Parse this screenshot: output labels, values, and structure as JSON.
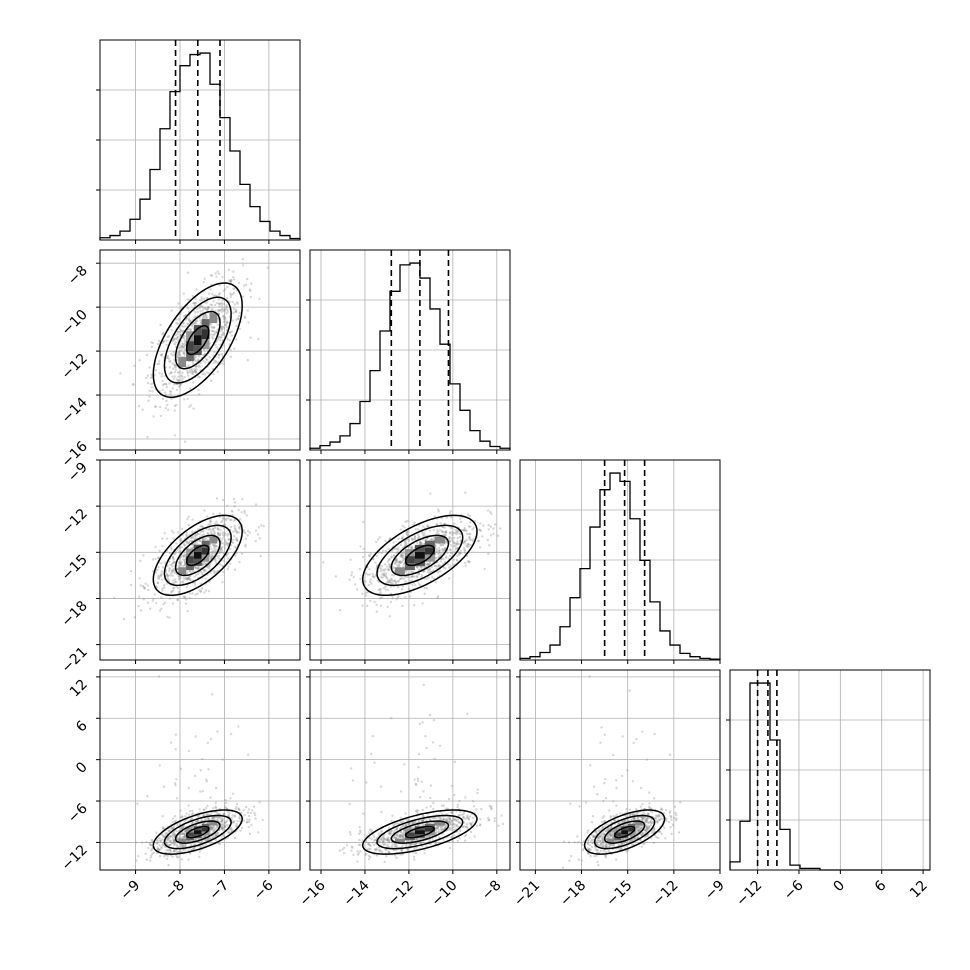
{
  "chart_data": {
    "type": "corner",
    "parameters": [
      {
        "id": "p0",
        "mean": -7.6,
        "sigma": 0.5,
        "range": [
          -9.8,
          -5.3
        ],
        "ticks": [
          -9,
          -8,
          -7,
          -6
        ],
        "quantiles": [
          -8.1,
          -7.6,
          -7.1
        ]
      },
      {
        "id": "p1",
        "mean": -11.5,
        "sigma": 1.3,
        "range": [
          -16.5,
          -7.4
        ],
        "ticks": [
          -16,
          -14,
          -12,
          -10,
          -8
        ],
        "quantiles": [
          -12.8,
          -11.5,
          -10.2
        ]
      },
      {
        "id": "p2",
        "mean": -15.2,
        "sigma": 1.3,
        "range": [
          -22,
          -9
        ],
        "ticks": [
          -21,
          -18,
          -15,
          -12,
          -9
        ],
        "quantiles": [
          -16.5,
          -15.2,
          -13.9
        ]
      },
      {
        "id": "p3",
        "mean": -10.5,
        "sigma": 1.6,
        "range": [
          -16,
          13
        ],
        "ticks": [
          -12,
          -6,
          0,
          6,
          12
        ],
        "quantiles": [
          -12.0,
          -10.5,
          -9.2
        ]
      }
    ],
    "correlation": 0.6,
    "histograms": [
      {
        "bins": 20,
        "counts": [
          3,
          6,
          12,
          28,
          55,
          95,
          150,
          200,
          235,
          250,
          252,
          210,
          165,
          120,
          75,
          45,
          25,
          12,
          6,
          2
        ]
      },
      {
        "bins": 20,
        "counts": [
          2,
          5,
          9,
          16,
          30,
          55,
          90,
          135,
          180,
          210,
          212,
          195,
          160,
          120,
          75,
          45,
          22,
          10,
          4,
          2
        ]
      },
      {
        "bins": 20,
        "counts": [
          2,
          4,
          9,
          18,
          40,
          75,
          110,
          160,
          205,
          225,
          215,
          170,
          120,
          70,
          35,
          18,
          8,
          4,
          2,
          1
        ]
      },
      {
        "bins": 20,
        "counts": [
          5,
          30,
          115,
          115,
          80,
          25,
          3,
          1,
          1,
          0,
          0,
          0,
          0,
          0,
          0,
          0,
          0,
          0,
          0,
          0
        ]
      }
    ],
    "panels_2d": [
      {
        "x": "p0",
        "y": "p1"
      },
      {
        "x": "p0",
        "y": "p2"
      },
      {
        "x": "p1",
        "y": "p2"
      },
      {
        "x": "p0",
        "y": "p3"
      },
      {
        "x": "p1",
        "y": "p3"
      },
      {
        "x": "p2",
        "y": "p3"
      }
    ],
    "contour_levels": [
      0.5,
      1.0,
      1.5,
      2.0
    ],
    "grid": true
  }
}
